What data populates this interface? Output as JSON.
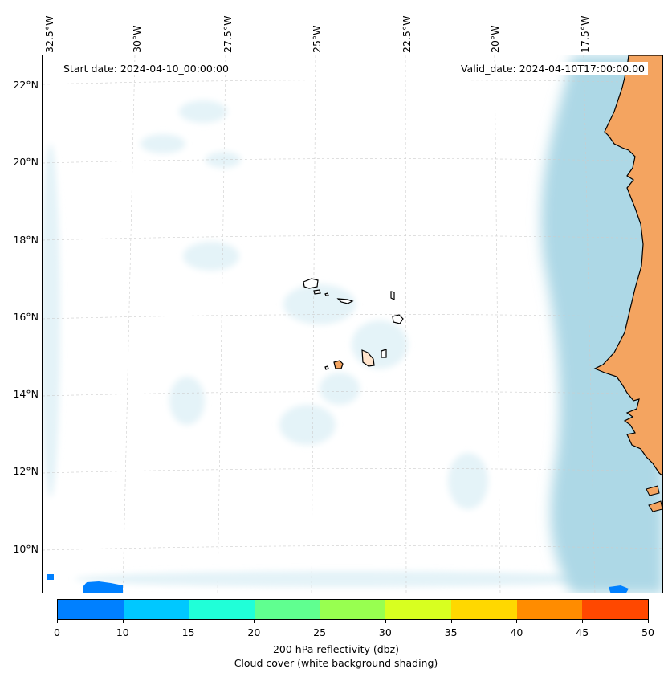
{
  "map": {
    "start_date": "Start date: 2024-04-10_00:00:00",
    "valid_date": "Valid_date: 2024-04-10T17:00:00.00",
    "longitude_labels": [
      "32.5°W",
      "30°W",
      "27.5°W",
      "25°W",
      "22.5°W",
      "20°W",
      "17.5°W"
    ],
    "latitude_labels": [
      "22°N",
      "20°N",
      "18°N",
      "16°N",
      "14°N",
      "12°N",
      "10°N"
    ],
    "colors": {
      "land": "#f4a460",
      "coastal_cloud": "#add8e6",
      "faint_cloud": "#e4f3f8",
      "gridline": "#cccccc"
    }
  },
  "colorbar": {
    "ticks": [
      "0",
      "10",
      "15",
      "20",
      "25",
      "30",
      "35",
      "40",
      "45",
      "50"
    ],
    "colors": [
      "#0080ff",
      "#00c8ff",
      "#20ffd8",
      "#60ff90",
      "#98ff50",
      "#d8ff20",
      "#ffd800",
      "#ff8c00",
      "#ff4800"
    ],
    "label": "200 hPa reflectivity (dbz)",
    "sublabel": "Cloud cover (white background shading)"
  }
}
